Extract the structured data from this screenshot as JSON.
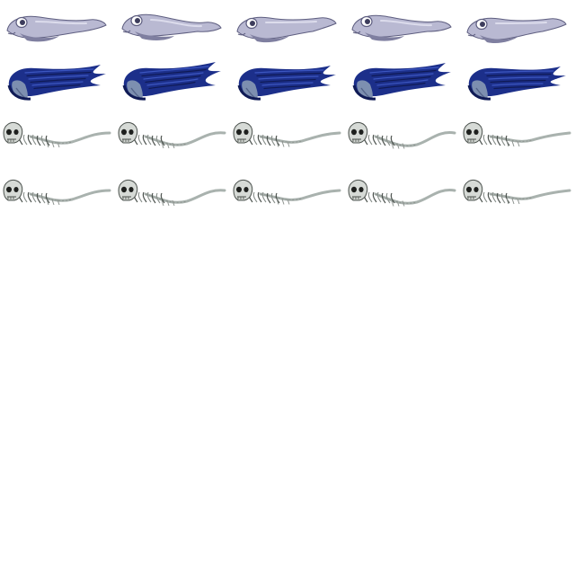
{
  "sheet": {
    "background": "#ffffff",
    "columns": 5,
    "rows": [
      {
        "creature": "manta-ray",
        "frame_count": 5,
        "colors": {
          "body": "#b9b9d2",
          "shade": "#7f7fa0",
          "outline": "#5e5e80",
          "eye": "#3d3d5c",
          "highlight": "#dcdcec"
        }
      },
      {
        "creature": "drowned-maiden-ghost",
        "frame_count": 5,
        "colors": {
          "hair": "#1c2f8a",
          "hair_dark": "#0f1a55",
          "hair_light": "#3c56c0",
          "face": "#7d8fb0",
          "face_shade": "#55648a"
        }
      },
      {
        "creature": "bone-serpent",
        "frame_count": 5,
        "colors": {
          "bone": "#d6dad6",
          "bone_shade": "#8e9490",
          "outline": "#4a504c",
          "socket": "#1e201e",
          "tail": "#a9b2ae"
        }
      },
      {
        "creature": "bone-serpent",
        "frame_count": 5,
        "colors": {
          "bone": "#d6dad6",
          "bone_shade": "#8e9490",
          "outline": "#4a504c",
          "socket": "#1e201e",
          "tail": "#a9b2ae"
        }
      }
    ]
  }
}
